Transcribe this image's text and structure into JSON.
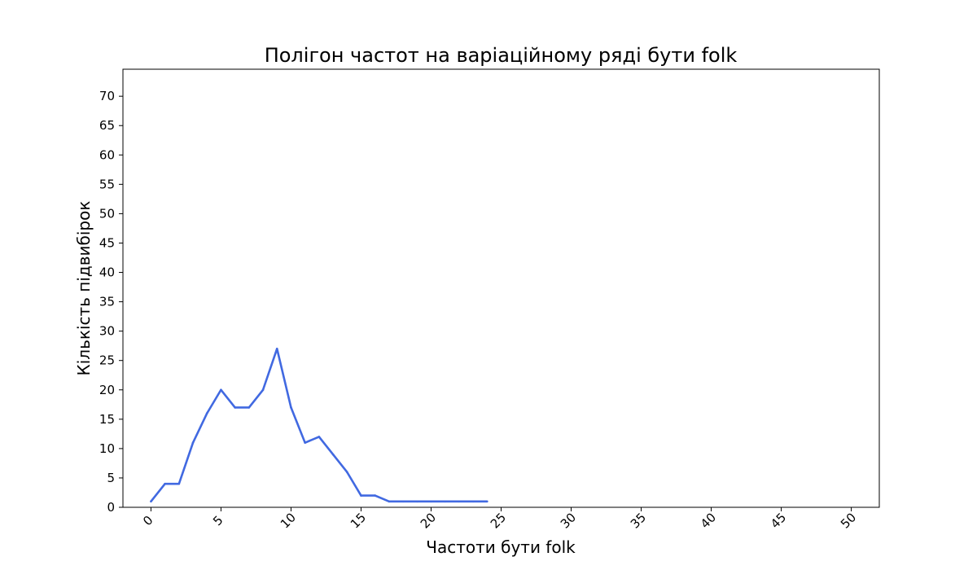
{
  "chart_data": {
    "type": "line",
    "title": "Полігон частот на варіаційному ряді бути folk",
    "xlabel": "Частоти бути folk",
    "ylabel": "Кількість підвибірок",
    "xlim": [
      -2,
      52
    ],
    "ylim": [
      0,
      74.6
    ],
    "x_ticks": [
      0,
      5,
      10,
      15,
      20,
      25,
      30,
      35,
      40,
      45,
      50
    ],
    "y_ticks": [
      0,
      5,
      10,
      15,
      20,
      25,
      30,
      35,
      40,
      45,
      50,
      55,
      60,
      65,
      70
    ],
    "x_tick_rotation_deg": 45,
    "grid": false,
    "series": [
      {
        "color": "#4169e1",
        "x": [
          0,
          1,
          2,
          3,
          4,
          5,
          6,
          7,
          8,
          9,
          10,
          11,
          12,
          13,
          14,
          15,
          16,
          17,
          18,
          19,
          20,
          21,
          22,
          23,
          24
        ],
        "y": [
          1,
          4,
          4,
          11,
          16,
          20,
          17,
          17,
          20,
          27,
          17,
          11,
          12,
          9,
          6,
          2,
          2,
          1,
          1,
          1,
          1,
          1,
          1,
          1,
          1
        ]
      }
    ]
  }
}
